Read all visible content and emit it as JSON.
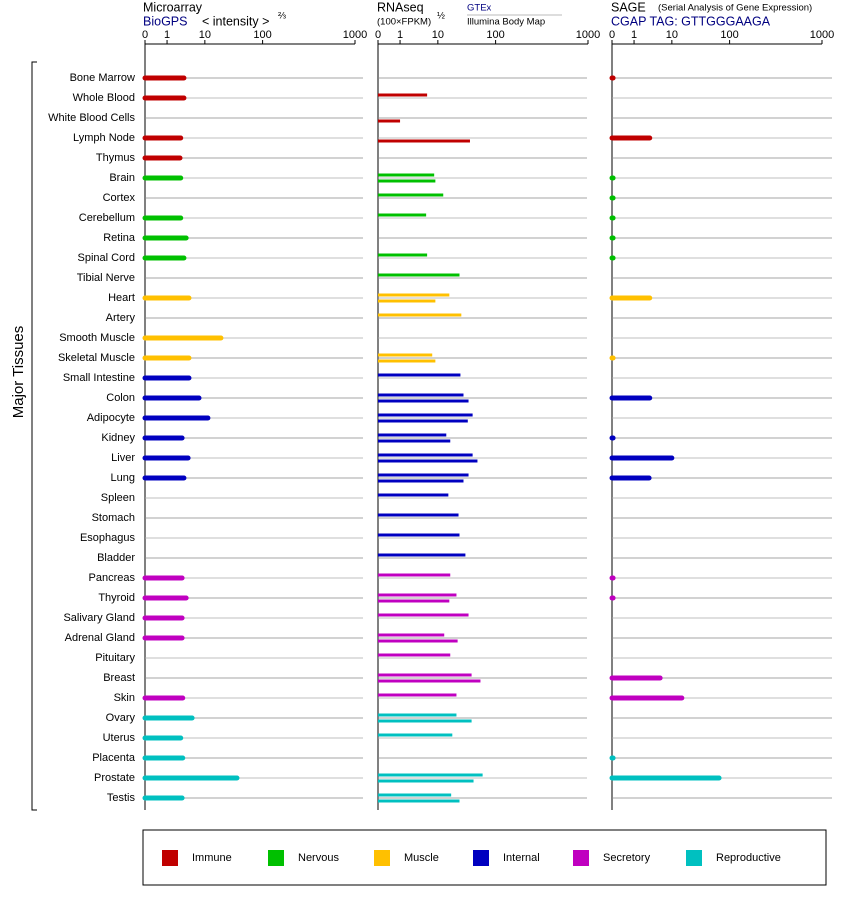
{
  "chart_data": {
    "type": "bar",
    "y_label": "Major Tissues",
    "categories": [
      "Bone Marrow",
      "Whole Blood",
      "White Blood Cells",
      "Lymph Node",
      "Thymus",
      "Brain",
      "Cortex",
      "Cerebellum",
      "Retina",
      "Spinal Cord",
      "Tibial Nerve",
      "Heart",
      "Artery",
      "Smooth Muscle",
      "Skeletal Muscle",
      "Small Intestine",
      "Colon",
      "Adipocyte",
      "Kidney",
      "Liver",
      "Lung",
      "Spleen",
      "Stomach",
      "Esophagus",
      "Bladder",
      "Pancreas",
      "Thyroid",
      "Salivary Gland",
      "Adrenal Gland",
      "Pituitary",
      "Breast",
      "Skin",
      "Ovary",
      "Uterus",
      "Placenta",
      "Prostate",
      "Testis"
    ],
    "groups": [
      {
        "name": "Immune",
        "color": "#c00000",
        "count": 5
      },
      {
        "name": "Nervous",
        "color": "#00c000",
        "count": 6
      },
      {
        "name": "Muscle",
        "color": "#ffc000",
        "count": 4
      },
      {
        "name": "Internal",
        "color": "#0000c0",
        "count": 10
      },
      {
        "name": "Secretory",
        "color": "#c000c0",
        "count": 7
      },
      {
        "name": "Reproductive",
        "color": "#00c0c0",
        "count": 5
      }
    ],
    "panels": [
      {
        "title": "Microarray",
        "source": "BioGPS",
        "unit": "< intensity >",
        "unit_exponent": "⅔",
        "xlim": [
          0,
          1000
        ],
        "xticks": [
          0,
          1,
          10,
          100,
          1000
        ],
        "values": [
          2.8,
          2.8,
          null,
          2.3,
          2.2,
          2.3,
          null,
          2.3,
          3.2,
          2.8,
          null,
          3.8,
          null,
          19,
          3.8,
          3.8,
          7,
          11.3,
          2.5,
          3.6,
          2.8,
          null,
          null,
          null,
          null,
          2.5,
          3.2,
          2.5,
          2.5,
          null,
          null,
          2.6,
          4.6,
          2.3,
          2.6,
          36,
          2.5
        ]
      },
      {
        "title": "RNAseq",
        "unit": "(100×FPKM)",
        "unit_exponent": "½",
        "xlim": [
          0,
          1000
        ],
        "xticks": [
          0,
          1,
          10,
          100,
          1000
        ],
        "series": [
          {
            "name": "GTEx",
            "values": [
              null,
              5.2,
              null,
              null,
              null,
              8.0,
              12.4,
              4.9,
              null,
              5.2,
              23.7,
              15.8,
              25.5,
              null,
              7.1,
              24.6,
              27.8,
              40,
              14,
              40,
              34,
              15.2,
              22.8,
              23.7,
              30,
              16.4,
              21,
              34,
              12.9,
              16.4,
              38.4,
              21,
              21,
              17.8,
              null,
              59.6,
              17
            ]
          },
          {
            "name": "Illumina Body Map",
            "values": [
              null,
              null,
              1.0,
              36,
              null,
              8.6,
              null,
              null,
              null,
              null,
              null,
              8.6,
              null,
              null,
              8.6,
              null,
              34,
              33,
              16.4,
              48.5,
              27.8,
              null,
              null,
              null,
              null,
              null,
              15.8,
              null,
              22,
              null,
              54.7,
              null,
              38.4,
              null,
              null,
              41.5,
              23.7
            ]
          }
        ]
      },
      {
        "title": "SAGE",
        "note": "(Serial Analysis of Gene Expression)",
        "source": "CGAP TAG: GTTGGGAAGA",
        "xlim": [
          0,
          1000
        ],
        "xticks": [
          0,
          1,
          10,
          100,
          1000
        ],
        "values": [
          0.05,
          null,
          null,
          2.6,
          null,
          0.05,
          0.05,
          0.05,
          0.05,
          0.05,
          null,
          2.6,
          null,
          null,
          0.05,
          null,
          2.6,
          null,
          0.05,
          10,
          2.5,
          null,
          null,
          null,
          null,
          0.05,
          0.05,
          null,
          null,
          null,
          4.9,
          14.9,
          null,
          null,
          0.05,
          65.7,
          null
        ]
      }
    ]
  }
}
